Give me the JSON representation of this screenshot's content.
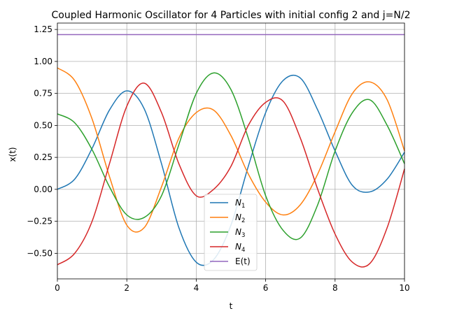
{
  "chart_data": {
    "type": "line",
    "title": "Coupled Harmonic Oscillator for 4 Particles with initial config 2 and j=N/2",
    "xlabel": "t",
    "ylabel": "x(t)",
    "xlim": [
      0,
      10
    ],
    "ylim": [
      -0.7,
      1.3
    ],
    "xticks": [
      0,
      2,
      4,
      6,
      8,
      10
    ],
    "xtick_labels": [
      "0",
      "2",
      "4",
      "6",
      "8",
      "10"
    ],
    "yticks": [
      -0.5,
      -0.25,
      0.0,
      0.25,
      0.5,
      0.75,
      1.0,
      1.25
    ],
    "ytick_labels": [
      "−0.50",
      "−0.25",
      "0.00",
      "0.25",
      "0.50",
      "0.75",
      "1.00",
      "1.25"
    ],
    "grid": true,
    "legend_position": "lower-center",
    "series": [
      {
        "name": "N",
        "subscript": "1",
        "color": "#1f77b4",
        "x": [
          0,
          0.5,
          1,
          1.5,
          2,
          2.5,
          3,
          3.5,
          4,
          4.5,
          5,
          5.5,
          6,
          6.5,
          7,
          7.5,
          8,
          8.5,
          9,
          9.5,
          10
        ],
        "y": [
          0.0,
          0.08,
          0.32,
          0.62,
          0.77,
          0.63,
          0.2,
          -0.3,
          -0.57,
          -0.55,
          -0.28,
          0.18,
          0.6,
          0.85,
          0.87,
          0.62,
          0.3,
          0.03,
          -0.02,
          0.08,
          0.29
        ]
      },
      {
        "name": "N",
        "subscript": "2",
        "color": "#ff7f0e",
        "x": [
          0,
          0.5,
          1,
          1.5,
          2,
          2.5,
          3,
          3.5,
          4,
          4.5,
          5,
          5.5,
          6,
          6.5,
          7,
          7.5,
          8,
          8.5,
          9,
          9.5,
          10
        ],
        "y": [
          0.95,
          0.85,
          0.55,
          0.1,
          -0.28,
          -0.3,
          0.02,
          0.4,
          0.6,
          0.62,
          0.42,
          0.12,
          -0.1,
          -0.2,
          -0.12,
          0.12,
          0.45,
          0.75,
          0.84,
          0.7,
          0.3
        ]
      },
      {
        "name": "N",
        "subscript": "3",
        "color": "#2ca02c",
        "x": [
          0,
          0.5,
          1,
          1.5,
          2,
          2.5,
          3,
          3.5,
          4,
          4.5,
          5,
          5.5,
          6,
          6.5,
          7,
          7.5,
          8,
          8.5,
          9,
          9.5,
          10
        ],
        "y": [
          0.59,
          0.52,
          0.31,
          0.02,
          -0.2,
          -0.22,
          -0.05,
          0.35,
          0.75,
          0.91,
          0.78,
          0.4,
          -0.05,
          -0.32,
          -0.38,
          -0.12,
          0.3,
          0.6,
          0.7,
          0.5,
          0.2
        ]
      },
      {
        "name": "N",
        "subscript": "4",
        "color": "#d62728",
        "x": [
          0,
          0.5,
          1,
          1.5,
          2,
          2.5,
          3,
          3.5,
          4,
          4.5,
          5,
          5.5,
          6,
          6.5,
          7,
          7.5,
          8,
          8.5,
          9,
          9.5,
          10
        ],
        "y": [
          -0.59,
          -0.5,
          -0.25,
          0.2,
          0.65,
          0.83,
          0.6,
          0.2,
          -0.05,
          0.0,
          0.18,
          0.5,
          0.68,
          0.69,
          0.4,
          0.0,
          -0.35,
          -0.57,
          -0.58,
          -0.3,
          0.16
        ]
      },
      {
        "name": "E(t)",
        "color": "#9467bd",
        "x": [
          0,
          10
        ],
        "y": [
          1.21,
          1.21
        ]
      }
    ]
  }
}
